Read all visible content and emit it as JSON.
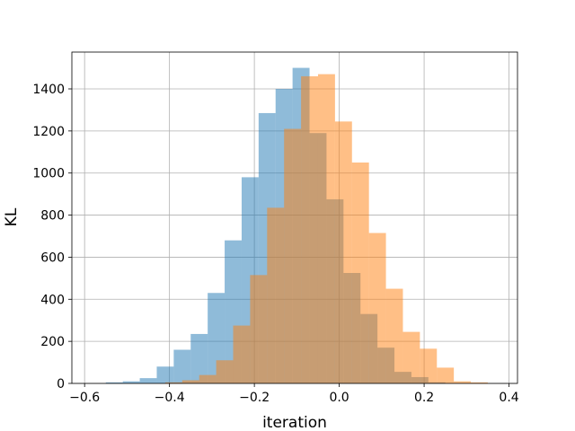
{
  "chart_data": {
    "type": "bar",
    "subtype": "histogram",
    "xlabel": "iteration",
    "ylabel": "KL",
    "xlim": [
      -0.63,
      0.42
    ],
    "ylim": [
      0,
      1575
    ],
    "xticks": [
      -0.6,
      -0.4,
      -0.2,
      0.0,
      0.2,
      0.4
    ],
    "xtick_labels": [
      "−0.6",
      "−0.4",
      "−0.2",
      "0.0",
      "0.2",
      "0.4"
    ],
    "yticks": [
      0,
      200,
      400,
      600,
      800,
      1000,
      1200,
      1400
    ],
    "ytick_labels": [
      "0",
      "200",
      "400",
      "600",
      "800",
      "1000",
      "1200",
      "1400"
    ],
    "grid": true,
    "series": [
      {
        "color": "#1f77b4",
        "opacity": 0.5,
        "bin_width": 0.04,
        "bin_starts": [
          -0.55,
          -0.51,
          -0.47,
          -0.43,
          -0.39,
          -0.35,
          -0.31,
          -0.27,
          -0.23,
          -0.19,
          -0.15,
          -0.11,
          -0.07,
          -0.03,
          0.01,
          0.05,
          0.09,
          0.13,
          0.17,
          0.21
        ],
        "counts": [
          5,
          10,
          25,
          80,
          160,
          235,
          430,
          680,
          980,
          1285,
          1400,
          1500,
          1190,
          875,
          525,
          330,
          170,
          55,
          30,
          5
        ]
      },
      {
        "color": "#ff7f0e",
        "opacity": 0.5,
        "bin_width": 0.04,
        "bin_starts": [
          -0.41,
          -0.37,
          -0.33,
          -0.29,
          -0.25,
          -0.21,
          -0.17,
          -0.13,
          -0.09,
          -0.05,
          -0.01,
          0.03,
          0.07,
          0.11,
          0.15,
          0.19,
          0.23,
          0.27,
          0.31
        ],
        "counts": [
          5,
          15,
          40,
          110,
          275,
          515,
          835,
          1210,
          1460,
          1470,
          1245,
          1050,
          715,
          450,
          245,
          165,
          75,
          10,
          5
        ]
      }
    ]
  }
}
